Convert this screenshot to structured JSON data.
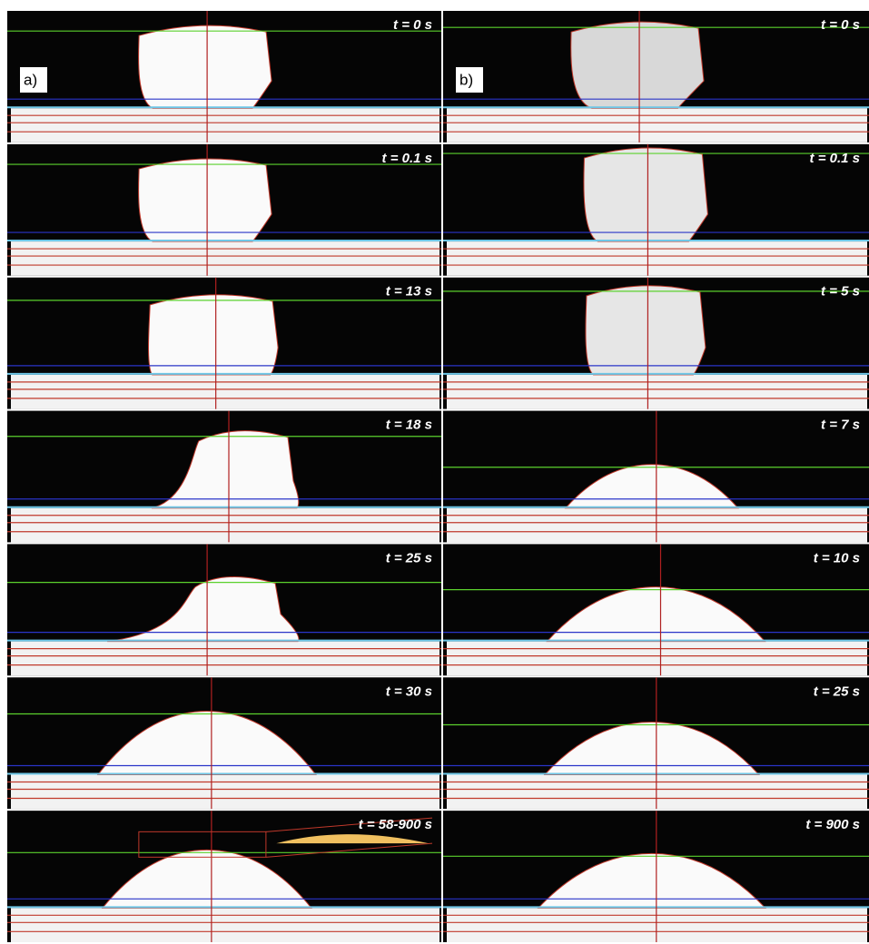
{
  "panels": [
    {
      "label": "a)",
      "frames": [
        "t = 0 s",
        "t = 0.1 s",
        "t = 13 s",
        "t = 18 s",
        "t = 25 s",
        "t = 30 s",
        "t = 58-900 s"
      ]
    },
    {
      "label": "b)",
      "frames": [
        "t = 0 s",
        "t = 0.1 s",
        "t = 5 s",
        "t = 7 s",
        "t = 10 s",
        "t = 25 s",
        "t = 900 s"
      ]
    }
  ]
}
